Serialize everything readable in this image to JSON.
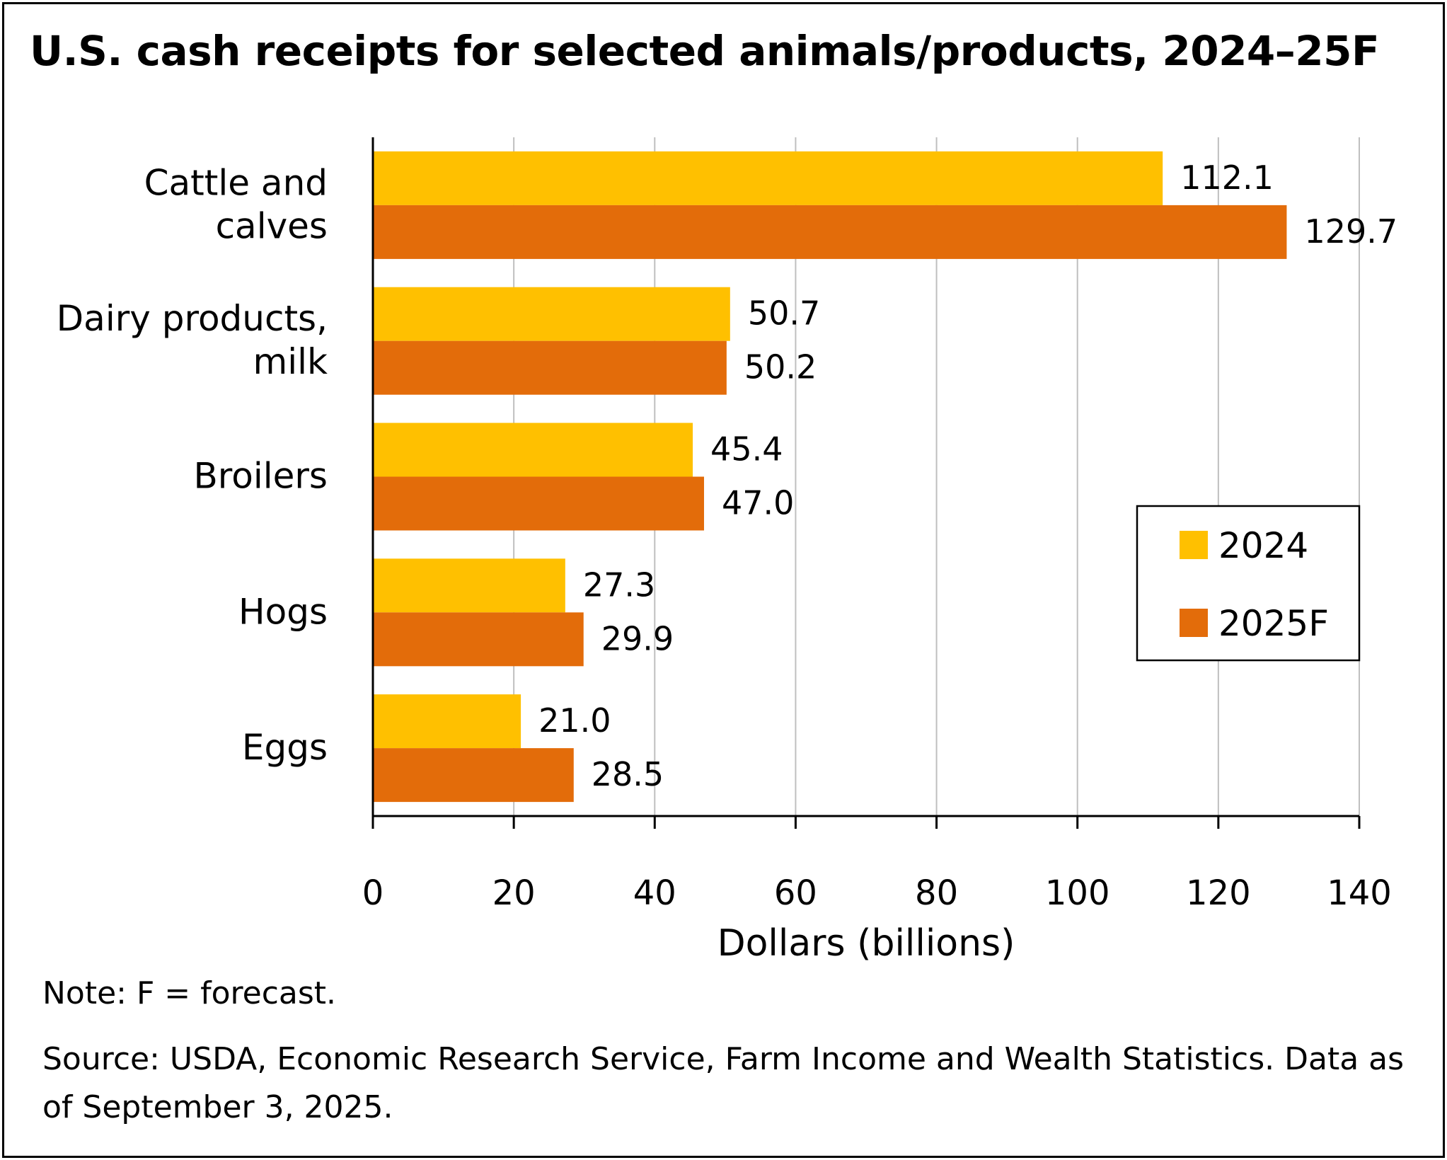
{
  "chart_data": {
    "type": "bar",
    "orientation": "horizontal",
    "title": "U.S. cash receipts for selected animals/products, 2024–25F",
    "categories": [
      [
        "Cattle and",
        "calves"
      ],
      [
        "Dairy products,",
        "milk"
      ],
      [
        "Broilers"
      ],
      [
        "Hogs"
      ],
      [
        "Eggs"
      ]
    ],
    "series": [
      {
        "name": "2024",
        "color": "#FFC000",
        "values": [
          112.1,
          50.7,
          45.4,
          27.3,
          21.0
        ],
        "labels": [
          "112.1",
          "50.7",
          "45.4",
          "27.3",
          "21.0"
        ]
      },
      {
        "name": "2025F",
        "color": "#E36C0A",
        "values": [
          129.7,
          50.2,
          47.0,
          29.9,
          28.5
        ],
        "labels": [
          "129.7",
          "50.2",
          "47.0",
          "29.9",
          "28.5"
        ]
      }
    ],
    "xlabel": "Dollars (billions)",
    "xlim": [
      0,
      140
    ],
    "xticks": [
      0,
      20,
      40,
      60,
      80,
      100,
      120,
      140
    ],
    "grid": true,
    "legend_position": "right",
    "note": "Note: F = forecast.",
    "source": "Source: USDA, Economic Research Service, Farm Income and Wealth Statistics. Data as of September 3, 2025."
  }
}
